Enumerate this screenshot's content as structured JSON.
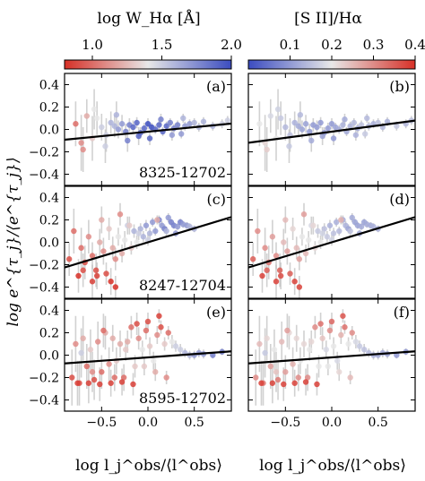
{
  "chart_data": {
    "type": "scatter",
    "figure_ylabel": "log e^{τ_j}/⟨e^{τ_j}⟩",
    "colorbars": [
      {
        "label": "log W_Hα [Å]",
        "ticks": [
          "1.0",
          "1.5",
          "2.0"
        ],
        "tick_values": [
          1.0,
          1.5,
          2.0
        ],
        "range": [
          0.8,
          2.0
        ],
        "colormap": "coolwarm_reversed",
        "low_color": "#d73027",
        "mid_color": "#e8e8e8",
        "high_color": "#3b4cc0"
      },
      {
        "label": "[S II]/Hα",
        "ticks": [
          "0.1",
          "0.2",
          "0.3",
          "0.4"
        ],
        "tick_values": [
          0.1,
          0.2,
          0.3,
          0.4
        ],
        "range": [
          0.0,
          0.4
        ],
        "colormap": "coolwarm",
        "low_color": "#3b4cc0",
        "mid_color": "#e8e8e8",
        "high_color": "#d73027"
      }
    ],
    "xlim": [
      -0.9,
      0.9
    ],
    "ylim": [
      -0.5,
      0.5
    ],
    "xticks": [
      "−0.5",
      "0.0",
      "0.5"
    ],
    "xtick_values": [
      -0.5,
      0.0,
      0.5
    ],
    "yticks": [
      "0.4",
      "0.2",
      "0.0",
      "−0.2",
      "−0.4"
    ],
    "ytick_values": [
      0.4,
      0.2,
      0.0,
      -0.2,
      -0.4
    ],
    "xlabels": [
      "log l_j^obs/⟨l^obs⟩",
      "log l_j^obs/⟨l^obs⟩"
    ],
    "panels": [
      {
        "id": "a",
        "label": "(a)",
        "row": 0,
        "col": 0,
        "galaxy": "8325-12702",
        "fit": {
          "slope": 0.08,
          "intercept": -0.02
        },
        "color_by": "log W_Hα"
      },
      {
        "id": "b",
        "label": "(b)",
        "row": 0,
        "col": 1,
        "galaxy": "",
        "fit": {
          "slope": 0.11,
          "intercept": -0.02
        },
        "color_by": "[S II]/Hα"
      },
      {
        "id": "c",
        "label": "(c)",
        "row": 1,
        "col": 0,
        "galaxy": "8247-12704",
        "fit": {
          "slope": 0.25,
          "intercept": 0.0
        },
        "color_by": "log W_Hα"
      },
      {
        "id": "d",
        "label": "(d)",
        "row": 1,
        "col": 1,
        "galaxy": "",
        "fit": {
          "slope": 0.25,
          "intercept": 0.0
        },
        "color_by": "[S II]/Hα"
      },
      {
        "id": "e",
        "label": "(e)",
        "row": 2,
        "col": 0,
        "galaxy": "8595-12702",
        "fit": {
          "slope": 0.06,
          "intercept": -0.02
        },
        "color_by": "log W_Hα"
      },
      {
        "id": "f",
        "label": "(f)",
        "row": 2,
        "col": 1,
        "galaxy": "",
        "fit": {
          "slope": 0.06,
          "intercept": -0.02
        },
        "color_by": "[S II]/Hα"
      }
    ],
    "scatter": {
      "8325-12702": {
        "x": [
          -0.78,
          -0.72,
          -0.66,
          -0.6,
          -0.55,
          -0.5,
          -0.45,
          -0.4,
          -0.36,
          -0.32,
          -0.28,
          -0.24,
          -0.2,
          -0.16,
          -0.12,
          -0.08,
          -0.04,
          0.0,
          0.04,
          0.08,
          0.12,
          0.16,
          0.2,
          0.24,
          0.28,
          0.32,
          0.36,
          0.4,
          0.45,
          0.5,
          0.55,
          0.6,
          0.7,
          0.8,
          0.86,
          -0.7,
          -0.58,
          -0.46,
          -0.34,
          -0.22,
          -0.1,
          0.02,
          0.14,
          0.26,
          0.38
        ],
        "y": [
          0.05,
          -0.12,
          0.12,
          -0.08,
          0.1,
          0.02,
          -0.05,
          0.06,
          0.03,
          0.0,
          0.05,
          -0.02,
          0.04,
          0.02,
          0.06,
          -0.03,
          0.01,
          0.05,
          0.02,
          0.0,
          0.04,
          -0.02,
          0.03,
          0.06,
          0.01,
          0.04,
          -0.04,
          0.03,
          0.05,
          0.06,
          0.02,
          0.07,
          0.03,
          0.05,
          0.08,
          -0.18,
          0.18,
          -0.15,
          0.13,
          -0.1,
          -0.06,
          -0.08,
          0.09,
          -0.05,
          0.1
        ],
        "yerr": [
          0.2,
          0.25,
          0.15,
          0.2,
          0.15,
          0.12,
          0.15,
          0.1,
          0.1,
          0.08,
          0.08,
          0.07,
          0.06,
          0.06,
          0.05,
          0.05,
          0.05,
          0.05,
          0.04,
          0.04,
          0.04,
          0.04,
          0.04,
          0.04,
          0.04,
          0.04,
          0.04,
          0.04,
          0.04,
          0.04,
          0.04,
          0.04,
          0.04,
          0.04,
          0.04,
          0.2,
          0.18,
          0.15,
          0.12,
          0.1,
          0.08,
          0.06,
          0.05,
          0.05,
          0.04
        ],
        "ew": [
          1.0,
          1.1,
          1.2,
          1.3,
          1.4,
          1.5,
          1.5,
          1.6,
          1.6,
          1.7,
          1.7,
          1.8,
          1.8,
          1.9,
          1.9,
          1.9,
          1.9,
          2.0,
          2.0,
          1.9,
          1.9,
          1.9,
          1.9,
          1.8,
          1.8,
          1.8,
          1.7,
          1.7,
          1.7,
          1.6,
          1.6,
          1.6,
          1.6,
          1.5,
          1.5,
          1.1,
          1.4,
          1.5,
          1.6,
          1.8,
          1.9,
          1.9,
          1.8,
          1.7,
          1.6
        ],
        "s2": [
          0.2,
          0.22,
          0.18,
          0.2,
          0.16,
          0.14,
          0.15,
          0.13,
          0.12,
          0.11,
          0.11,
          0.1,
          0.1,
          0.1,
          0.1,
          0.1,
          0.1,
          0.1,
          0.11,
          0.12,
          0.13,
          0.12,
          0.13,
          0.14,
          0.12,
          0.15,
          0.16,
          0.14,
          0.13,
          0.15,
          0.14,
          0.13,
          0.16,
          0.14,
          0.15,
          0.23,
          0.17,
          0.16,
          0.14,
          0.12,
          0.11,
          0.1,
          0.12,
          0.13,
          0.14
        ]
      },
      "8247-12704": {
        "x": [
          -0.85,
          -0.8,
          -0.75,
          -0.72,
          -0.68,
          -0.64,
          -0.6,
          -0.56,
          -0.52,
          -0.48,
          -0.45,
          -0.42,
          -0.38,
          -0.35,
          -0.32,
          -0.28,
          -0.25,
          -0.22,
          -0.18,
          -0.15,
          -0.12,
          -0.08,
          -0.05,
          -0.02,
          0.02,
          0.05,
          0.08,
          0.12,
          0.15,
          0.18,
          0.22,
          0.25,
          0.28,
          0.32,
          0.35,
          0.38,
          0.42,
          0.45,
          0.5,
          -0.6,
          -0.5,
          -0.4,
          -0.3,
          -0.2,
          -0.1,
          0.0,
          0.1,
          0.2,
          0.3,
          -0.7,
          -0.55,
          -0.35
        ],
        "y": [
          -0.15,
          0.1,
          -0.3,
          -0.05,
          -0.18,
          0.05,
          -0.12,
          -0.25,
          0.0,
          -0.08,
          -0.28,
          0.12,
          -0.05,
          -0.15,
          0.05,
          -0.1,
          0.02,
          0.15,
          -0.05,
          0.1,
          0.0,
          0.12,
          0.05,
          0.15,
          0.08,
          0.18,
          0.1,
          0.2,
          0.15,
          0.12,
          0.22,
          0.18,
          0.15,
          0.14,
          0.18,
          0.16,
          0.15,
          0.14,
          0.12,
          -0.35,
          0.2,
          -0.35,
          0.25,
          0.15,
          0.08,
          0.02,
          0.2,
          0.1,
          0.08,
          -0.25,
          -0.3,
          -0.4
        ],
        "yerr": [
          0.15,
          0.2,
          0.15,
          0.18,
          0.15,
          0.15,
          0.12,
          0.15,
          0.12,
          0.12,
          0.1,
          0.1,
          0.1,
          0.1,
          0.08,
          0.08,
          0.08,
          0.08,
          0.06,
          0.06,
          0.06,
          0.05,
          0.05,
          0.05,
          0.05,
          0.04,
          0.04,
          0.04,
          0.04,
          0.04,
          0.04,
          0.03,
          0.03,
          0.03,
          0.03,
          0.03,
          0.03,
          0.03,
          0.03,
          0.15,
          0.12,
          0.12,
          0.1,
          0.08,
          0.06,
          0.05,
          0.04,
          0.04,
          0.03,
          0.15,
          0.12,
          0.1
        ],
        "ew": [
          0.9,
          1.0,
          0.8,
          1.0,
          0.9,
          1.1,
          1.0,
          0.9,
          1.2,
          1.1,
          0.9,
          1.3,
          1.2,
          1.1,
          1.4,
          1.2,
          1.4,
          1.5,
          1.3,
          1.6,
          1.4,
          1.6,
          1.6,
          1.7,
          1.6,
          1.7,
          1.7,
          1.8,
          1.7,
          1.8,
          1.7,
          1.8,
          1.8,
          1.7,
          1.8,
          1.7,
          1.7,
          1.6,
          1.6,
          0.85,
          1.2,
          0.8,
          1.1,
          1.3,
          1.5,
          1.5,
          1.2,
          1.6,
          1.7,
          0.9,
          0.85,
          0.8
        ],
        "s2": [
          0.35,
          0.3,
          0.38,
          0.3,
          0.33,
          0.28,
          0.3,
          0.35,
          0.25,
          0.28,
          0.35,
          0.22,
          0.25,
          0.28,
          0.2,
          0.25,
          0.2,
          0.18,
          0.22,
          0.16,
          0.2,
          0.15,
          0.16,
          0.13,
          0.15,
          0.13,
          0.14,
          0.12,
          0.13,
          0.11,
          0.12,
          0.11,
          0.11,
          0.12,
          0.11,
          0.12,
          0.12,
          0.13,
          0.13,
          0.38,
          0.25,
          0.38,
          0.28,
          0.22,
          0.17,
          0.17,
          0.26,
          0.15,
          0.12,
          0.35,
          0.37,
          0.38
        ]
      },
      "8595-12702": {
        "x": [
          -0.82,
          -0.78,
          -0.74,
          -0.7,
          -0.66,
          -0.62,
          -0.58,
          -0.54,
          -0.5,
          -0.46,
          -0.42,
          -0.38,
          -0.34,
          -0.3,
          -0.26,
          -0.22,
          -0.18,
          -0.14,
          -0.1,
          -0.06,
          -0.02,
          0.02,
          0.06,
          0.1,
          0.14,
          0.18,
          0.22,
          0.26,
          0.3,
          0.35,
          0.4,
          0.45,
          0.5,
          0.55,
          0.6,
          0.7,
          0.8,
          -0.76,
          -0.64,
          -0.52,
          -0.4,
          -0.28,
          -0.16,
          -0.04,
          0.08,
          0.2,
          -0.72,
          -0.6,
          -0.48,
          -0.36,
          -0.24,
          -0.12,
          0.0,
          0.12
        ],
        "y": [
          -0.2,
          0.1,
          -0.25,
          0.15,
          -0.1,
          0.05,
          -0.22,
          0.12,
          -0.15,
          0.2,
          -0.08,
          0.15,
          -0.05,
          0.1,
          -0.2,
          0.12,
          0.25,
          -0.1,
          0.15,
          0.05,
          0.22,
          0.08,
          -0.05,
          0.18,
          0.25,
          0.1,
          0.2,
          0.12,
          0.08,
          0.05,
          0.02,
          0.0,
          0.0,
          0.02,
          0.01,
          0.0,
          0.03,
          -0.25,
          -0.25,
          -0.26,
          -0.25,
          -0.24,
          -0.26,
          -0.1,
          -0.15,
          -0.2,
          0.02,
          -0.15,
          0.22,
          -0.2,
          0.05,
          0.28,
          0.3,
          0.35
        ],
        "yerr": [
          0.25,
          0.25,
          0.2,
          0.2,
          0.2,
          0.18,
          0.18,
          0.18,
          0.15,
          0.15,
          0.15,
          0.12,
          0.12,
          0.12,
          0.12,
          0.1,
          0.1,
          0.1,
          0.1,
          0.08,
          0.08,
          0.08,
          0.08,
          0.08,
          0.06,
          0.06,
          0.06,
          0.06,
          0.05,
          0.05,
          0.04,
          0.04,
          0.04,
          0.04,
          0.04,
          0.03,
          0.03,
          0.2,
          0.18,
          0.15,
          0.12,
          0.12,
          0.1,
          0.08,
          0.08,
          0.06,
          0.22,
          0.18,
          0.15,
          0.12,
          0.1,
          0.1,
          0.08,
          0.06
        ],
        "ew": [
          0.9,
          1.1,
          0.9,
          1.2,
          1.0,
          1.3,
          0.9,
          1.1,
          1.0,
          1.2,
          1.1,
          1.2,
          1.3,
          1.2,
          1.0,
          1.2,
          1.0,
          1.3,
          1.1,
          1.4,
          1.0,
          1.3,
          1.4,
          1.1,
          0.9,
          1.3,
          1.0,
          1.4,
          1.5,
          1.5,
          1.6,
          1.6,
          1.7,
          1.7,
          1.7,
          1.8,
          1.8,
          0.85,
          0.85,
          0.85,
          0.85,
          0.85,
          0.85,
          1.3,
          1.2,
          1.1,
          1.5,
          1.1,
          1.0,
          1.0,
          1.3,
          0.9,
          0.9,
          0.85
        ],
        "s2": [
          0.3,
          0.25,
          0.32,
          0.22,
          0.28,
          0.2,
          0.32,
          0.25,
          0.28,
          0.22,
          0.26,
          0.22,
          0.2,
          0.22,
          0.3,
          0.22,
          0.3,
          0.2,
          0.24,
          0.18,
          0.3,
          0.2,
          0.18,
          0.26,
          0.33,
          0.2,
          0.3,
          0.18,
          0.16,
          0.15,
          0.14,
          0.13,
          0.12,
          0.12,
          0.11,
          0.1,
          0.1,
          0.38,
          0.38,
          0.38,
          0.38,
          0.38,
          0.38,
          0.2,
          0.22,
          0.25,
          0.16,
          0.24,
          0.28,
          0.3,
          0.2,
          0.33,
          0.34,
          0.36
        ]
      }
    }
  }
}
